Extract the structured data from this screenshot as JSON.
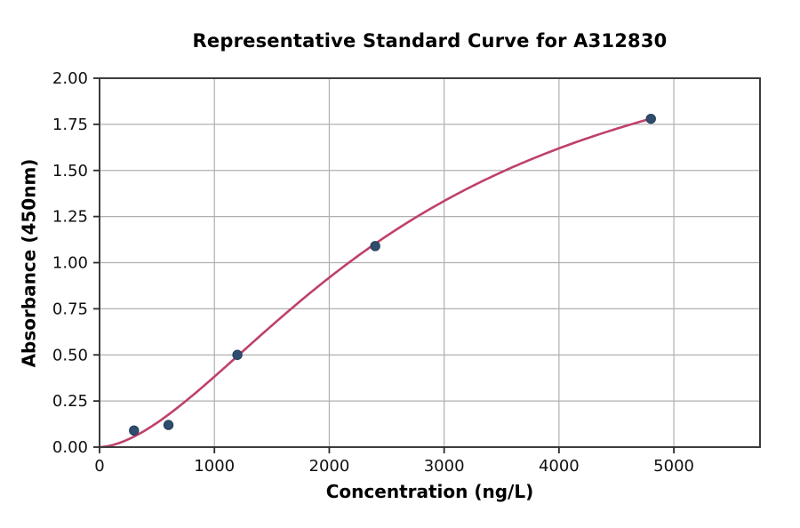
{
  "chart_data": {
    "type": "scatter",
    "title": "Representative Standard Curve for A312830",
    "xlabel": "Concentration (ng/L)",
    "ylabel": "Absorbance (450nm)",
    "xlim": [
      0,
      5750
    ],
    "ylim": [
      0,
      2
    ],
    "x_ticks": [
      0,
      1000,
      2000,
      3000,
      4000,
      5000
    ],
    "x_tick_labels": [
      "0",
      "1000",
      "2000",
      "3000",
      "4000",
      "5000"
    ],
    "y_ticks": [
      0,
      0.25,
      0.5,
      0.75,
      1,
      1.25,
      1.5,
      1.75,
      2
    ],
    "y_tick_labels": [
      "0.00",
      "0.25",
      "0.50",
      "0.75",
      "1.00",
      "1.25",
      "1.50",
      "1.75",
      "2.00"
    ],
    "grid": true,
    "legend": "none",
    "points": [
      {
        "x": 300,
        "y": 0.09
      },
      {
        "x": 600,
        "y": 0.12
      },
      {
        "x": 1200,
        "y": 0.5
      },
      {
        "x": 2400,
        "y": 1.09
      },
      {
        "x": 4800,
        "y": 1.78
      }
    ],
    "fit_curve": {
      "model": "4PL",
      "params": {
        "a": 0,
        "b": 1.7,
        "c": 2700,
        "d": 2.45
      },
      "x_start": 0,
      "x_end": 4800
    },
    "colors": {
      "curve": "#bf4169",
      "points": "#2f4d6e",
      "grid": "#b0b0b0",
      "spine": "#3d3d3d",
      "tick": "#2b2b2b",
      "background": "#ffffff"
    }
  }
}
